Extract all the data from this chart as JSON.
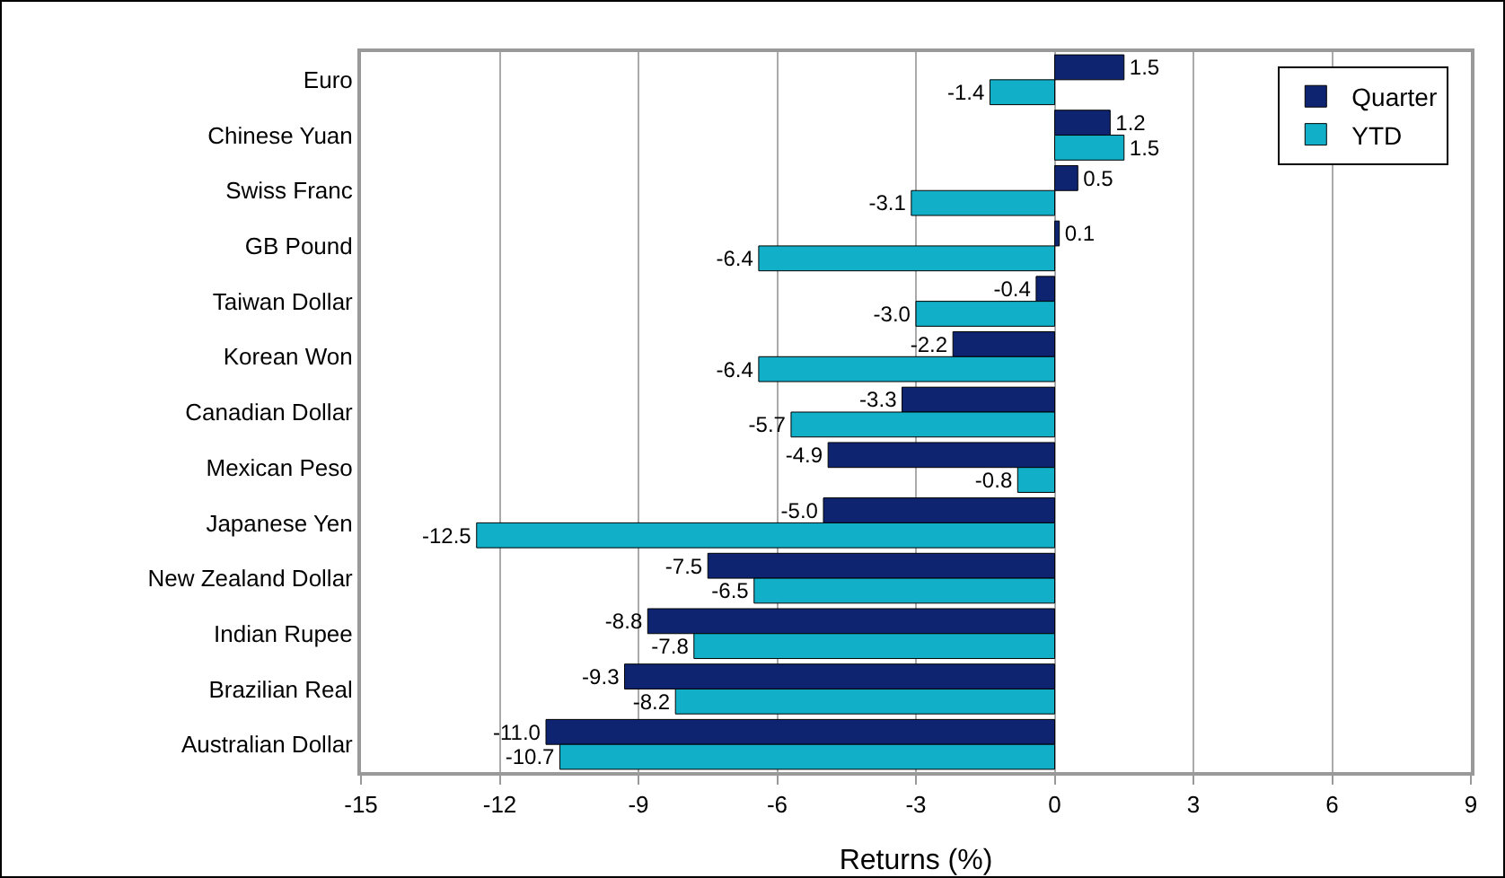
{
  "chart_data": {
    "type": "bar",
    "orientation": "horizontal",
    "xlabel": "Returns (%)",
    "categories": [
      "Euro",
      "Chinese Yuan",
      "Swiss Franc",
      "GB Pound",
      "Taiwan Dollar",
      "Korean Won",
      "Canadian Dollar",
      "Mexican Peso",
      "Japanese Yen",
      "New Zealand Dollar",
      "Indian Rupee",
      "Brazilian Real",
      "Australian Dollar"
    ],
    "series": [
      {
        "name": "Quarter",
        "color": "#0f2470",
        "values": [
          1.5,
          1.2,
          0.5,
          0.1,
          -0.4,
          -2.2,
          -3.3,
          -4.9,
          -5.0,
          -7.5,
          -8.8,
          -9.3,
          -11.0
        ],
        "value_labels": [
          "1.5",
          "1.2",
          "0.5",
          "0.1",
          "-0.4",
          "-2.2",
          "-3.3",
          "-4.9",
          "-5.0",
          "-7.5",
          "-8.8",
          "-9.3",
          "-11.0"
        ]
      },
      {
        "name": "YTD",
        "color": "#12b0c8",
        "values": [
          -1.4,
          1.5,
          -3.1,
          -6.4,
          -3.0,
          -6.4,
          -5.7,
          -0.8,
          -12.5,
          -6.5,
          -7.8,
          -8.2,
          -10.7
        ],
        "value_labels": [
          "-1.4",
          "1.5",
          "-3.1",
          "-6.4",
          "-3.0",
          "-6.4",
          "-5.7",
          "-0.8",
          "-12.5",
          "-6.5",
          "-7.8",
          "-8.2",
          "-10.7"
        ]
      }
    ],
    "xlim": [
      -15,
      9
    ],
    "xticks": [
      -15,
      -12,
      -9,
      -6,
      -3,
      0,
      3,
      6,
      9
    ],
    "grid": "x",
    "legend": "top right"
  }
}
